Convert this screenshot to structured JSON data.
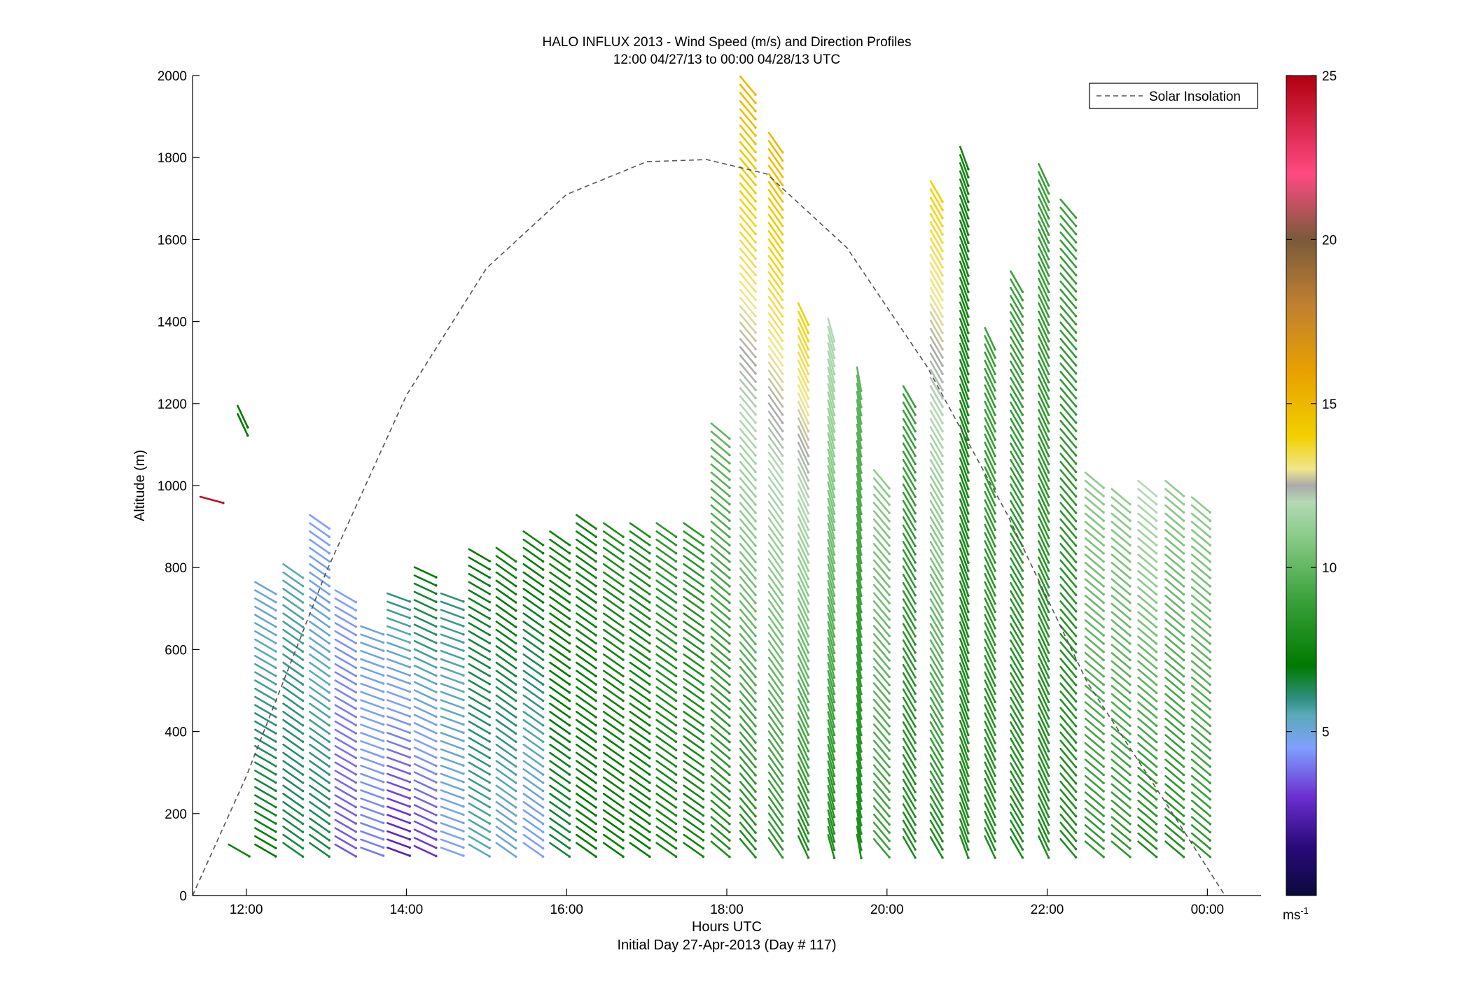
{
  "chart_data": {
    "type": "scatter",
    "title": "HALO INFLUX 2013 - Wind Speed (m/s) and Direction Profiles",
    "subtitle": "12:00 04/27/13 to 00:00 04/28/13  UTC",
    "xlabel": "Hours UTC",
    "xlabel_secondary": "Initial Day 27-Apr-2013 (Day # 117)",
    "ylabel": "Altitude (m)",
    "x_unit": "hours UTC since 00:00 04/27/13",
    "xlim": [
      11.33,
      24.67
    ],
    "ylim": [
      0,
      2000
    ],
    "x_ticks": [
      {
        "value": 12,
        "label": "12:00"
      },
      {
        "value": 14,
        "label": "14:00"
      },
      {
        "value": 16,
        "label": "16:00"
      },
      {
        "value": 18,
        "label": "18:00"
      },
      {
        "value": 20,
        "label": "20:00"
      },
      {
        "value": 22,
        "label": "22:00"
      },
      {
        "value": 24,
        "label": "00:00"
      }
    ],
    "y_ticks": [
      0,
      200,
      400,
      600,
      800,
      1000,
      1200,
      1400,
      1600,
      1800,
      2000
    ],
    "grid": false,
    "legend": {
      "position": "top-right",
      "entries": [
        {
          "label": "Solar Insolation",
          "style": "dashed",
          "color": "#555555"
        }
      ]
    },
    "colorbar": {
      "min": 0,
      "max": 25,
      "ticks": [
        5,
        10,
        15,
        20,
        25
      ],
      "unit_label": "ms",
      "unit_exponent": "-1",
      "stops": [
        {
          "v": 0,
          "c": "#0a0a3c"
        },
        {
          "v": 1.5,
          "c": "#2a0a7a"
        },
        {
          "v": 3,
          "c": "#6b2fd0"
        },
        {
          "v": 4.5,
          "c": "#7f9fff"
        },
        {
          "v": 5.5,
          "c": "#5aaab8"
        },
        {
          "v": 6,
          "c": "#2f8f7f"
        },
        {
          "v": 7,
          "c": "#007a00"
        },
        {
          "v": 9,
          "c": "#3aa03a"
        },
        {
          "v": 11,
          "c": "#8ccc8c"
        },
        {
          "v": 12,
          "c": "#b4d8b4"
        },
        {
          "v": 12.5,
          "c": "#aaaaaa"
        },
        {
          "v": 13,
          "c": "#f0e68c"
        },
        {
          "v": 14,
          "c": "#f2d000"
        },
        {
          "v": 16,
          "c": "#e8a000"
        },
        {
          "v": 18,
          "c": "#c08030"
        },
        {
          "v": 20,
          "c": "#7a5a3a"
        },
        {
          "v": 22,
          "c": "#ff4a82"
        },
        {
          "v": 25,
          "c": "#b00010"
        }
      ]
    },
    "solar_insolation_curve": {
      "x": [
        11.33,
        12.0,
        13.0,
        14.0,
        15.0,
        16.0,
        17.0,
        17.75,
        18.5,
        19.5,
        20.5,
        21.5,
        22.5,
        23.5,
        24.22
      ],
      "y": [
        0,
        290,
        790,
        1220,
        1530,
        1710,
        1790,
        1795,
        1760,
        1580,
        1290,
        930,
        520,
        220,
        0
      ]
    },
    "wind_profiles": [
      {
        "x": 11.67,
        "z": [
          960
        ],
        "speed": [
          24.5
        ],
        "dir_deg": [
          285
        ]
      },
      {
        "x": 12.0,
        "z": [
          100,
          1130,
          1150
        ],
        "speed": [
          7.5,
          7,
          7
        ],
        "dir_deg": [
          300,
          335,
          335
        ]
      },
      {
        "x": 12.33,
        "z_range": [
          100,
          750
        ],
        "speed_low": 7,
        "speed_high": 5,
        "dir_deg": 300
      },
      {
        "x": 12.67,
        "z_range": [
          100,
          780
        ],
        "speed_low": 6.5,
        "speed_high": 5.5,
        "dir_deg": 305
      },
      {
        "x": 13.0,
        "z_range": [
          100,
          900
        ],
        "speed_low": 6.5,
        "speed_high": 4.5,
        "dir_deg": 305
      },
      {
        "x": 13.33,
        "z_range": [
          100,
          720
        ],
        "speed_low": 3.5,
        "speed_high": 4.5,
        "dir_deg": 300
      },
      {
        "x": 13.67,
        "z_range": [
          100,
          650
        ],
        "speed_low": 4,
        "speed_high": 5,
        "dir_deg": 290
      },
      {
        "x": 14.0,
        "z_range": [
          100,
          720
        ],
        "speed_low": 2.5,
        "speed_high": 6,
        "dir_deg": 290
      },
      {
        "x": 14.33,
        "z_range": [
          100,
          790
        ],
        "speed_low": 3,
        "speed_high": 7,
        "dir_deg": 295
      },
      {
        "x": 14.67,
        "z_range": [
          100,
          720
        ],
        "speed_low": 4.5,
        "speed_high": 6,
        "dir_deg": 290
      },
      {
        "x": 15.0,
        "z_range": [
          100,
          830
        ],
        "speed_low": 5.5,
        "speed_high": 7,
        "dir_deg": 300
      },
      {
        "x": 15.33,
        "z_range": [
          100,
          830
        ],
        "speed_low": 5,
        "speed_high": 7.5,
        "dir_deg": 305
      },
      {
        "x": 15.67,
        "z_range": [
          100,
          870
        ],
        "speed_low": 4.5,
        "speed_high": 7.5,
        "dir_deg": 305
      },
      {
        "x": 16.0,
        "z_range": [
          100,
          870
        ],
        "speed_low": 6.5,
        "speed_high": 7.5,
        "dir_deg": 305
      },
      {
        "x": 16.33,
        "z_range": [
          100,
          900
        ],
        "speed_low": 7,
        "speed_high": 7.5,
        "dir_deg": 305
      },
      {
        "x": 16.67,
        "z_range": [
          100,
          880
        ],
        "speed_low": 7,
        "speed_high": 8,
        "dir_deg": 305
      },
      {
        "x": 17.0,
        "z_range": [
          100,
          880
        ],
        "speed_low": 7,
        "speed_high": 8,
        "dir_deg": 305
      },
      {
        "x": 17.33,
        "z_range": [
          100,
          880
        ],
        "speed_low": 7.5,
        "speed_high": 8.5,
        "dir_deg": 305
      },
      {
        "x": 17.67,
        "z_range": [
          100,
          890
        ],
        "speed_low": 7.5,
        "speed_high": 8.5,
        "dir_deg": 305
      },
      {
        "x": 18.0,
        "z_range": [
          100,
          1130
        ],
        "speed_low": 8,
        "speed_high": 10,
        "dir_deg": 310
      },
      {
        "x": 18.33,
        "z_range": [
          100,
          1960
        ],
        "speed_low": 8,
        "speed_high": 15,
        "dir_deg": 320
      },
      {
        "x": 18.67,
        "z_range": [
          100,
          1830
        ],
        "speed_low": 8.5,
        "speed_high": 15,
        "dir_deg": 325
      },
      {
        "x": 19.0,
        "z_range": [
          100,
          1400
        ],
        "speed_low": 8,
        "speed_high": 14,
        "dir_deg": 335
      },
      {
        "x": 19.33,
        "z_range": [
          100,
          1360
        ],
        "speed_low": 8,
        "speed_high": 12,
        "dir_deg": 345
      },
      {
        "x": 19.67,
        "z_range": [
          100,
          1250
        ],
        "speed_low": 8,
        "speed_high": 10,
        "dir_deg": 350
      },
      {
        "x": 20.0,
        "z_range": [
          100,
          1000
        ],
        "speed_low": 9,
        "speed_high": 11,
        "dir_deg": 320
      },
      {
        "x": 20.33,
        "z_range": [
          100,
          1210
        ],
        "speed_low": 8,
        "speed_high": 9,
        "dir_deg": 330
      },
      {
        "x": 20.67,
        "z_range": [
          100,
          1700
        ],
        "speed_low": 8,
        "speed_high": 14,
        "dir_deg": 330
      },
      {
        "x": 21.0,
        "z_range": [
          100,
          1780
        ],
        "speed_low": 8,
        "speed_high": 7.5,
        "dir_deg": 340
      },
      {
        "x": 21.33,
        "z_range": [
          100,
          1340
        ],
        "speed_low": 8,
        "speed_high": 9,
        "dir_deg": 335
      },
      {
        "x": 21.67,
        "z_range": [
          100,
          1480
        ],
        "speed_low": 8,
        "speed_high": 9,
        "dir_deg": 330
      },
      {
        "x": 22.0,
        "z_range": [
          100,
          1750
        ],
        "speed_low": 8,
        "speed_high": 9,
        "dir_deg": 335
      },
      {
        "x": 22.33,
        "z_range": [
          100,
          1660
        ],
        "speed_low": 8,
        "speed_high": 9,
        "dir_deg": 320
      },
      {
        "x": 22.67,
        "z_range": [
          100,
          1010
        ],
        "speed_low": 8.5,
        "speed_high": 11,
        "dir_deg": 310
      },
      {
        "x": 23.0,
        "z_range": [
          100,
          960
        ],
        "speed_low": 8.5,
        "speed_high": 11,
        "dir_deg": 310
      },
      {
        "x": 23.33,
        "z_range": [
          100,
          980
        ],
        "speed_low": 8,
        "speed_high": 12,
        "dir_deg": 310
      },
      {
        "x": 23.67,
        "z_range": [
          100,
          980
        ],
        "speed_low": 8,
        "speed_high": 11,
        "dir_deg": 310
      },
      {
        "x": 24.0,
        "z_range": [
          100,
          950
        ],
        "speed_low": 8.5,
        "speed_high": 11,
        "dir_deg": 310
      }
    ]
  }
}
